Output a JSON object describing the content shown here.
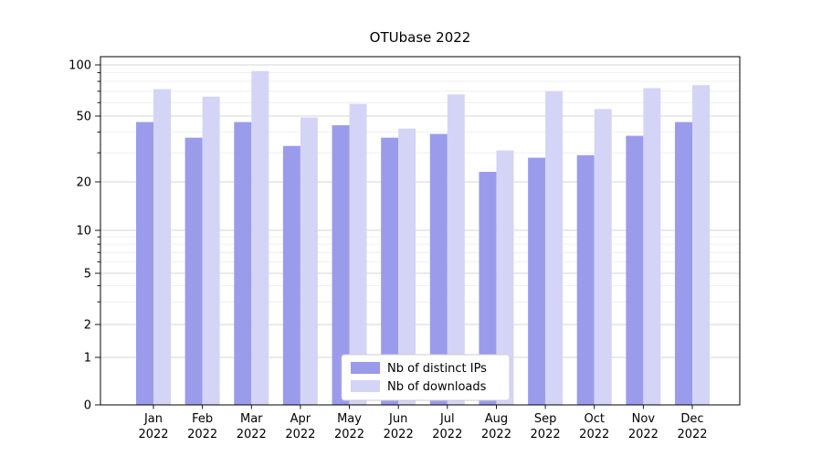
{
  "chart_data": {
    "type": "bar",
    "title": "OTUbase 2022",
    "categories": [
      "Jan",
      "Feb",
      "Mar",
      "Apr",
      "May",
      "Jun",
      "Jul",
      "Aug",
      "Sep",
      "Oct",
      "Nov",
      "Dec"
    ],
    "category_year": "2022",
    "series": [
      {
        "name": "Nb of distinct IPs",
        "color": "#9b9bec",
        "values": [
          46,
          37,
          46,
          33,
          44,
          37,
          39,
          23,
          28,
          29,
          38,
          46
        ]
      },
      {
        "name": "Nb of downloads",
        "color": "#d4d4f7",
        "values": [
          72,
          65,
          92,
          49,
          59,
          42,
          67,
          31,
          70,
          55,
          73,
          76
        ]
      }
    ],
    "yscale": "symlog",
    "ylim": [
      0,
      100
    ],
    "yticks": [
      0,
      1,
      2,
      5,
      10,
      20,
      50,
      100
    ],
    "yticks_minor": [
      3,
      4,
      6,
      7,
      8,
      9,
      30,
      40,
      60,
      70,
      80,
      90
    ],
    "grid": true,
    "legend_position": "lower center"
  }
}
